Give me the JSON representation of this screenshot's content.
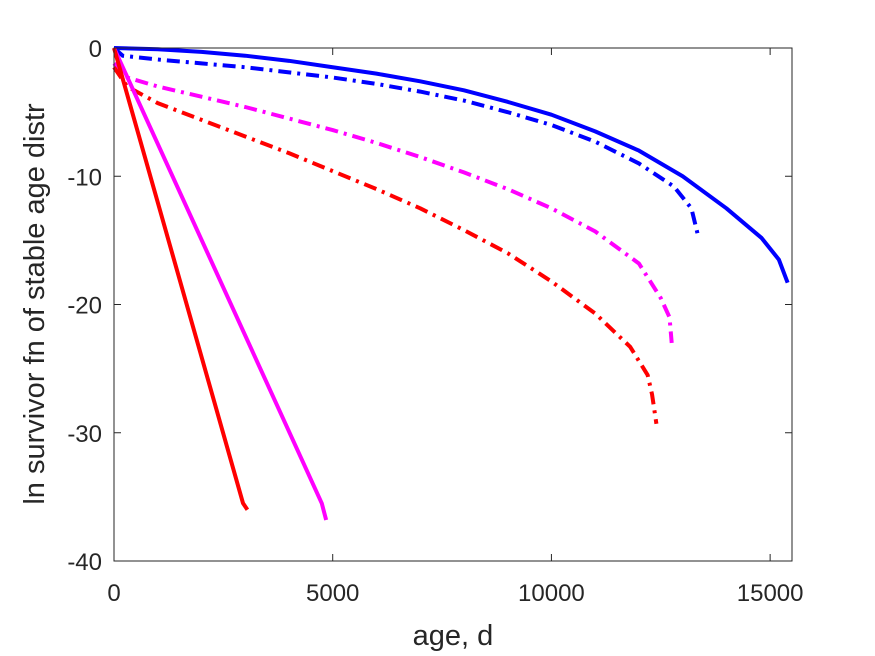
{
  "chart_data": {
    "type": "line",
    "title": "",
    "xlabel": "age, d",
    "ylabel": "ln survivor fn of stable age distr",
    "xlim": [
      0,
      15500
    ],
    "ylim": [
      -40,
      0
    ],
    "xticks": [
      0,
      5000,
      10000,
      15000
    ],
    "xtick_labels": [
      "0",
      "5000",
      "10000",
      "15000"
    ],
    "yticks": [
      0,
      -10,
      -20,
      -30,
      -40
    ],
    "ytick_labels": [
      "0",
      "-10",
      "-20",
      "-30",
      "-40"
    ],
    "grid": false,
    "legend": "none",
    "series": [
      {
        "color": "#0000ff",
        "style": "solid",
        "points": [
          [
            0,
            0
          ],
          [
            1000,
            -0.1
          ],
          [
            2000,
            -0.3
          ],
          [
            3000,
            -0.6
          ],
          [
            4000,
            -1.0
          ],
          [
            5000,
            -1.5
          ],
          [
            6000,
            -2.0
          ],
          [
            7000,
            -2.6
          ],
          [
            8000,
            -3.3
          ],
          [
            9000,
            -4.2
          ],
          [
            10000,
            -5.2
          ],
          [
            11000,
            -6.5
          ],
          [
            12000,
            -8.0
          ],
          [
            13000,
            -10.0
          ],
          [
            14000,
            -12.5
          ],
          [
            14800,
            -14.8
          ],
          [
            15200,
            -16.5
          ],
          [
            15400,
            -18.3
          ]
        ]
      },
      {
        "color": "#0000ff",
        "style": "dashdot",
        "points": [
          [
            0,
            0
          ],
          [
            200,
            -0.6
          ],
          [
            1000,
            -0.9
          ],
          [
            2000,
            -1.2
          ],
          [
            3000,
            -1.5
          ],
          [
            4000,
            -1.9
          ],
          [
            5000,
            -2.3
          ],
          [
            6000,
            -2.8
          ],
          [
            7000,
            -3.4
          ],
          [
            8000,
            -4.1
          ],
          [
            9000,
            -5.0
          ],
          [
            10000,
            -6.0
          ],
          [
            11000,
            -7.3
          ],
          [
            12000,
            -9.0
          ],
          [
            12800,
            -10.8
          ],
          [
            13200,
            -12.5
          ],
          [
            13350,
            -14.6
          ]
        ]
      },
      {
        "color": "#ff00ff",
        "style": "dashdot",
        "points": [
          [
            0,
            -1.2
          ],
          [
            300,
            -2.3
          ],
          [
            1000,
            -3.0
          ],
          [
            2000,
            -3.8
          ],
          [
            3000,
            -4.6
          ],
          [
            4000,
            -5.5
          ],
          [
            5000,
            -6.4
          ],
          [
            6000,
            -7.4
          ],
          [
            7000,
            -8.5
          ],
          [
            8000,
            -9.7
          ],
          [
            9000,
            -11.0
          ],
          [
            10000,
            -12.5
          ],
          [
            11000,
            -14.3
          ],
          [
            12000,
            -16.8
          ],
          [
            12500,
            -19.5
          ],
          [
            12700,
            -21.0
          ],
          [
            12750,
            -23.0
          ]
        ]
      },
      {
        "color": "#ff0000",
        "style": "dashdot",
        "points": [
          [
            0,
            -1.5
          ],
          [
            300,
            -3.0
          ],
          [
            1000,
            -4.3
          ],
          [
            2000,
            -5.6
          ],
          [
            3000,
            -6.9
          ],
          [
            4000,
            -8.2
          ],
          [
            5000,
            -9.6
          ],
          [
            6000,
            -11.0
          ],
          [
            7000,
            -12.5
          ],
          [
            8000,
            -14.2
          ],
          [
            9000,
            -16.0
          ],
          [
            10000,
            -18.2
          ],
          [
            11000,
            -20.7
          ],
          [
            11800,
            -23.3
          ],
          [
            12200,
            -25.5
          ],
          [
            12300,
            -27.0
          ],
          [
            12400,
            -29.3
          ]
        ]
      },
      {
        "color": "#ff00ff",
        "style": "solid",
        "points": [
          [
            0,
            0
          ],
          [
            4750,
            -35.5
          ],
          [
            4850,
            -36.8
          ]
        ]
      },
      {
        "color": "#ff0000",
        "style": "solid",
        "points": [
          [
            0,
            0
          ],
          [
            2950,
            -35.5
          ],
          [
            3050,
            -36.0
          ]
        ]
      }
    ]
  }
}
